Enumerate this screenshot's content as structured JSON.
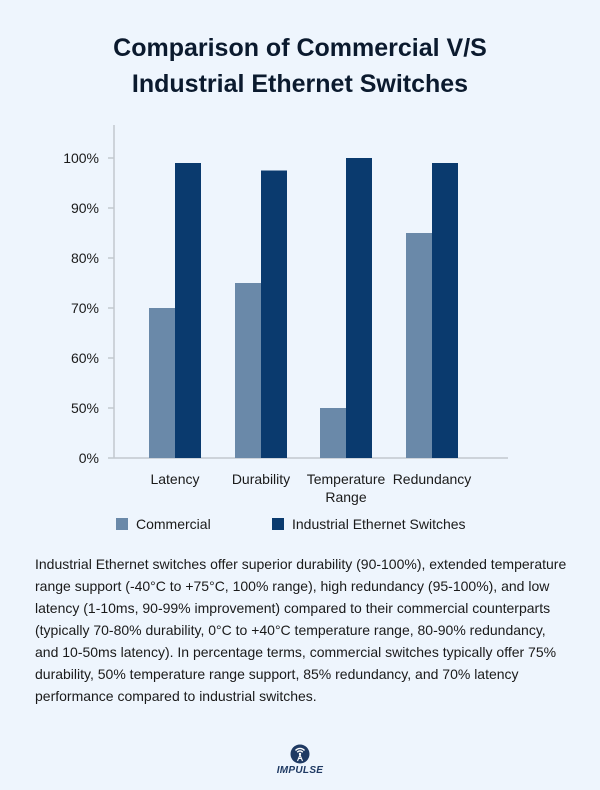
{
  "title": [
    "Comparison of Commercial V/S",
    "Industrial Ethernet Switches"
  ],
  "chart_data": {
    "type": "bar",
    "categories": [
      "Latency",
      "Durability",
      "Temperature\nRange",
      "Redundancy"
    ],
    "series": [
      {
        "name": "Commercial",
        "values": [
          70,
          75,
          50,
          85
        ],
        "color": "#6a89a9"
      },
      {
        "name": "Industrial Ethernet Switches",
        "values": [
          99,
          97.5,
          100,
          99
        ],
        "color": "#0a3a6e"
      }
    ],
    "yticks": [
      "0%",
      "50%",
      "60%",
      "70%",
      "80%",
      "90%",
      "100%"
    ],
    "ytick_values": [
      0,
      50,
      60,
      70,
      80,
      90,
      100
    ],
    "grid": false,
    "legend_position": "bottom",
    "xlabel": "",
    "ylabel": ""
  },
  "description": "Industrial Ethernet switches offer superior durability (90-100%), extended temperature range support (-40°C to +75°C, 100% range), high redundancy (95-100%), and low latency (1-10ms, 90-99% improvement) compared to their commercial counterparts (typically 70-80% durability, 0°C to +40°C temperature range, 80-90% redundancy, and 10-50ms latency). In percentage terms, commercial switches typically offer 75% durability, 50% temperature range support, 85% redundancy, and 70% latency performance compared to industrial switches.",
  "logo": {
    "text": "IMPULSE",
    "icon": "signal-tower-icon"
  }
}
